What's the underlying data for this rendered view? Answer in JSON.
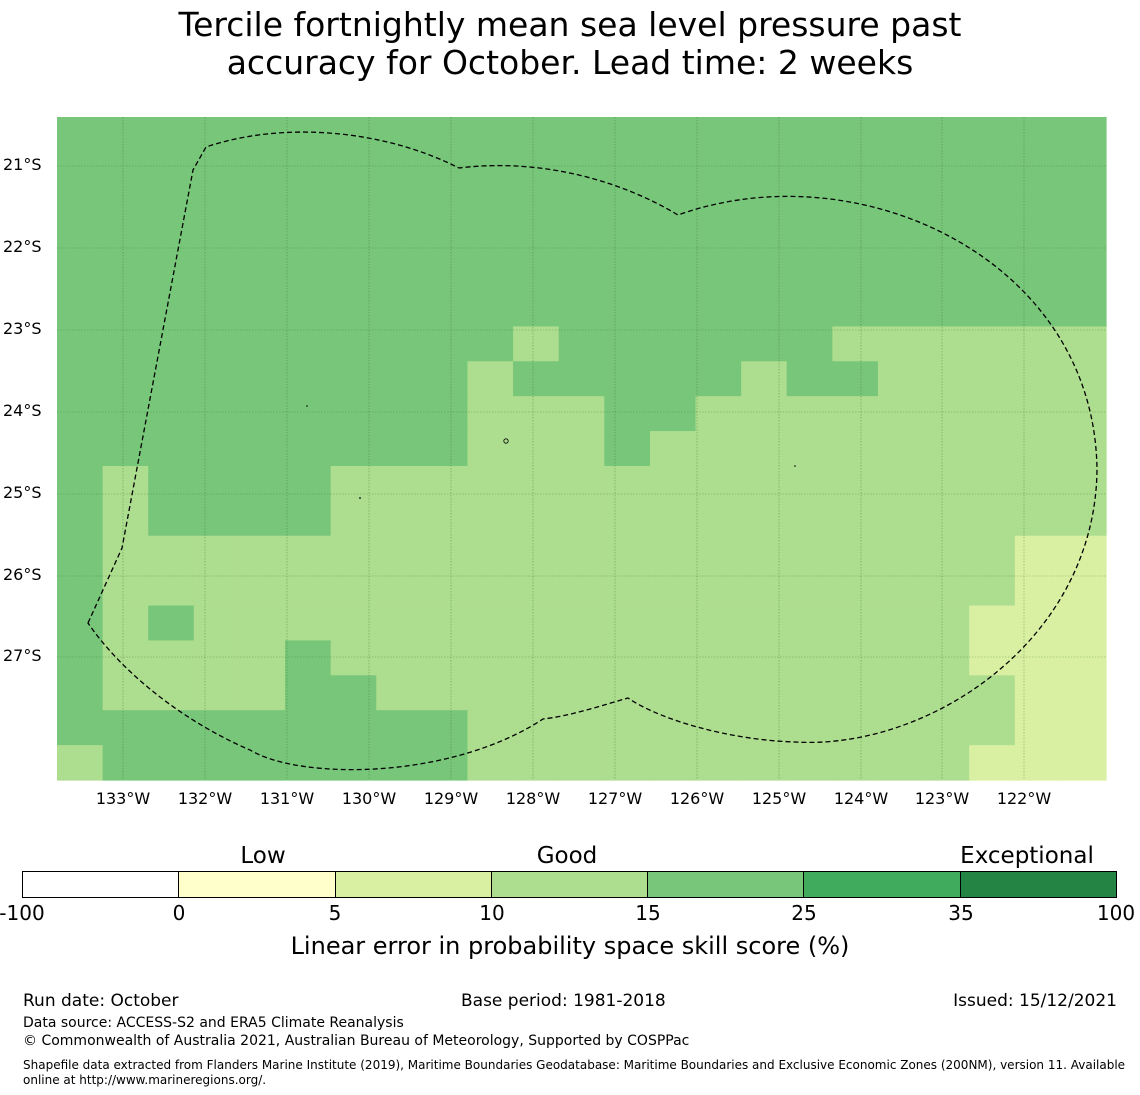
{
  "title": {
    "line1": "Tercile fortnightly mean sea level pressure past",
    "line2": "accuracy for October. Lead time: 2 weeks"
  },
  "map": {
    "lat_labels": [
      "21°S",
      "22°S",
      "23°S",
      "24°S",
      "25°S",
      "26°S",
      "27°S"
    ],
    "lon_labels": [
      "133°W",
      "132°W",
      "131°W",
      "130°W",
      "129°W",
      "128°W",
      "127°W",
      "126°W",
      "125°W",
      "124°W",
      "123°W",
      "122°W"
    ],
    "lat_range": [
      -28.5,
      -20.4
    ],
    "lon_range": [
      -133.8,
      -121.0
    ],
    "cell_rows": [
      "GGGGGGGGGGGGGGGGGGGGGGG",
      "GGGGGGGGGGGGGGGGGGGGGGG",
      "GGGGGGGGGGGGGGGGGGGGGGG",
      "GGGGGGGGGGGGGGGGGGGGGGG",
      "GGGGGGGGGGGGGGGGGGGGGGG",
      "GGGGGGGGGGGGGGGGGGGGGGG",
      "GGGGGGGGGGMGGGGGGMMMMMM",
      "GGGGGGGGGMGGGGGMGGMMMMM",
      "GGGGGGGGGMMMGGMMMMMMMMM",
      "GGGGGGGGGMMMGMMMMMMMMMM",
      "GMGGGGMMMMMMMMMMMMMMMMM",
      "GMGGGGMMMMMMMMMMMMMMMMM",
      "GMMMMMMMMMMMMMMMMMMMMLL",
      "GMMMMMMMMMMMMMMMMMMMMLL",
      "GMGMMMMMMMMMMMMMMMMMLLL",
      "GMMMMGMMMMMMMMMMMMMMLLL",
      "GMMMMGGMMMMMMMMMMMMMMLL",
      "GGGGGGGGGMMMMMMMMMMMMLL",
      "MGGGGGGGGMMMMMMMMMMMLLL"
    ],
    "cell_colors": {
      "L": "#d9f0a3",
      "M": "#addd8e",
      "G": "#78c679"
    }
  },
  "legend": {
    "categories": [
      "Low",
      "Good",
      "Exceptional"
    ],
    "ticks": [
      "-100",
      "0",
      "5",
      "10",
      "15",
      "25",
      "35",
      "100"
    ],
    "colors": [
      "#ffffff",
      "#ffffcc",
      "#d9f0a3",
      "#addd8e",
      "#78c679",
      "#41ab5d",
      "#238443"
    ],
    "title": "Linear error in probability space skill score (%)"
  },
  "footer": {
    "run_date": "Run date: October",
    "base_period": "Base period: 1981-2018",
    "issued": "Issued: 15/12/2021",
    "data_source": "Data source: ACCESS-S2 and ERA5 Climate Reanalysis",
    "copyright": "© Commonwealth of Australia 2021, Australian Bureau of Meteorology, Supported by COSPPac",
    "shapefile": "Shapefile data extracted from Flanders Marine Institute (2019), Maritime Boundaries Geodatabase: Maritime Boundaries and Exclusive Economic Zones (200NM), version 11. Available online at http://www.marineregions.org/."
  }
}
